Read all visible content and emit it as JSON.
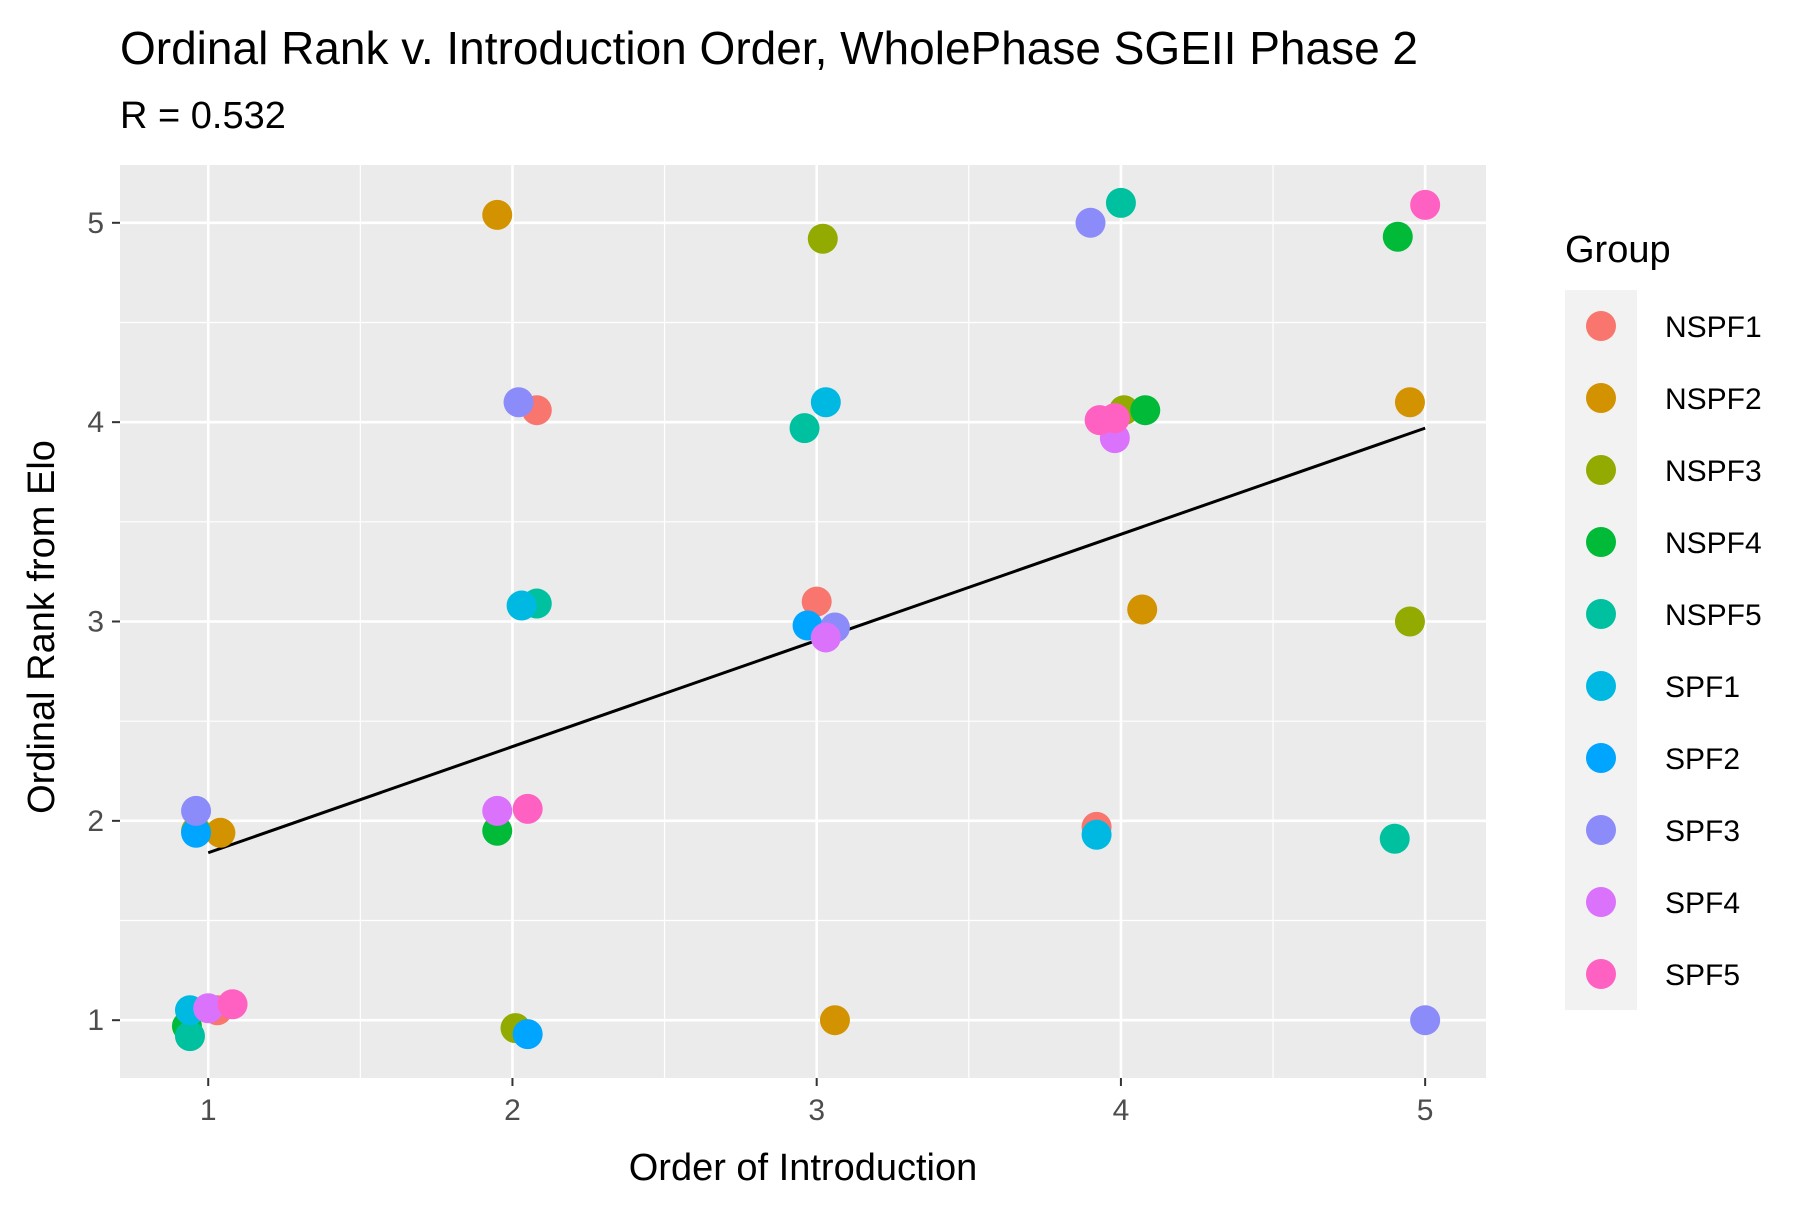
{
  "chart_data": {
    "type": "scatter",
    "title": "Ordinal Rank v. Introduction Order, WholePhase SGEII Phase 2",
    "subtitle": "R = 0.532",
    "xlabel": "Order of Introduction",
    "ylabel": "Ordinal Rank from Elo",
    "xlim": [
      0.71,
      5.2
    ],
    "ylim": [
      0.71,
      5.29
    ],
    "x_ticks": [
      1,
      2,
      3,
      4,
      5
    ],
    "y_ticks": [
      1,
      2,
      3,
      4,
      5
    ],
    "grid": true,
    "legend_title": "Group",
    "legend_position": "right",
    "trend_line": {
      "x": [
        1,
        5
      ],
      "y": [
        1.84,
        3.97
      ]
    },
    "series": [
      {
        "name": "NSPF1",
        "color": "#F8766D",
        "points": [
          [
            1.03,
            1.05
          ],
          [
            2.08,
            4.06
          ],
          [
            3.0,
            3.1
          ],
          [
            3.92,
            1.97
          ]
        ]
      },
      {
        "name": "NSPF2",
        "color": "#D39200",
        "points": [
          [
            1.04,
            1.94
          ],
          [
            1.95,
            5.04
          ],
          [
            3.06,
            1.0
          ],
          [
            4.07,
            3.06
          ],
          [
            4.95,
            4.1
          ]
        ]
      },
      {
        "name": "NSPF3",
        "color": "#93AA00",
        "points": [
          [
            0.96,
            1.95
          ],
          [
            2.01,
            0.96
          ],
          [
            3.02,
            4.92
          ],
          [
            4.01,
            4.06
          ],
          [
            4.95,
            3.0
          ]
        ]
      },
      {
        "name": "NSPF4",
        "color": "#00BA38",
        "points": [
          [
            0.93,
            0.97
          ],
          [
            1.95,
            1.95
          ],
          [
            4.08,
            4.06
          ],
          [
            4.91,
            4.93
          ]
        ]
      },
      {
        "name": "NSPF5",
        "color": "#00C19F",
        "points": [
          [
            0.94,
            0.92
          ],
          [
            2.08,
            3.09
          ],
          [
            2.96,
            3.97
          ],
          [
            4.0,
            5.1
          ],
          [
            4.9,
            1.91
          ]
        ]
      },
      {
        "name": "SPF1",
        "color": "#00B9E3",
        "points": [
          [
            0.94,
            1.05
          ],
          [
            2.03,
            3.08
          ],
          [
            3.03,
            4.1
          ],
          [
            3.92,
            1.93
          ]
        ]
      },
      {
        "name": "SPF2",
        "color": "#00A5FF",
        "points": [
          [
            0.96,
            1.94
          ],
          [
            2.05,
            0.93
          ],
          [
            2.97,
            2.98
          ]
        ]
      },
      {
        "name": "SPF3",
        "color": "#8B8BF9",
        "points": [
          [
            0.96,
            2.05
          ],
          [
            2.02,
            4.1
          ],
          [
            3.06,
            2.97
          ],
          [
            3.9,
            5.0
          ],
          [
            5.0,
            1.0
          ]
        ]
      },
      {
        "name": "SPF4",
        "color": "#DB72FB",
        "points": [
          [
            1.0,
            1.06
          ],
          [
            1.95,
            2.05
          ],
          [
            3.03,
            2.92
          ],
          [
            3.98,
            3.92
          ]
        ]
      },
      {
        "name": "SPF5",
        "color": "#FF61C3",
        "points": [
          [
            1.08,
            1.08
          ],
          [
            2.05,
            2.06
          ],
          [
            3.98,
            4.02
          ],
          [
            3.93,
            4.01
          ],
          [
            5.0,
            5.09
          ]
        ]
      }
    ]
  }
}
